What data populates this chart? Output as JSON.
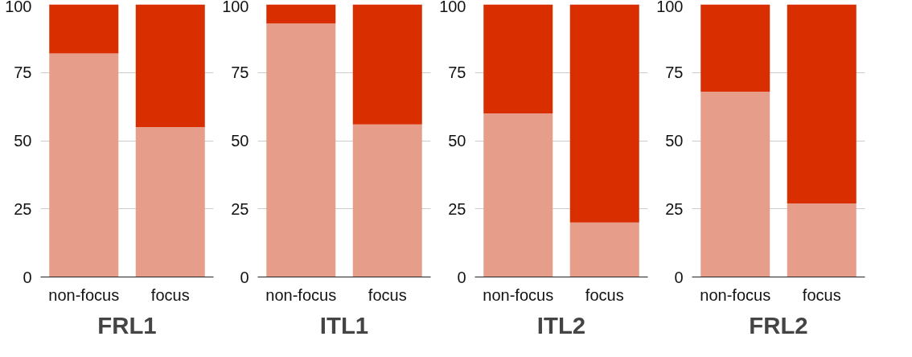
{
  "chart_data": [
    {
      "type": "bar",
      "stacked": true,
      "title": "FRL1",
      "categories": [
        "non-focus",
        "focus"
      ],
      "ylim": [
        0,
        100
      ],
      "yticks": [
        0,
        25,
        50,
        75,
        100
      ],
      "grid": "y",
      "series": [
        {
          "color": "#e69e8a",
          "values": [
            82,
            55
          ]
        },
        {
          "color": "#d92e00",
          "values": [
            18,
            45
          ]
        }
      ]
    },
    {
      "type": "bar",
      "stacked": true,
      "title": "ITL1",
      "categories": [
        "non-focus",
        "focus"
      ],
      "ylim": [
        0,
        100
      ],
      "yticks": [
        0,
        25,
        50,
        75,
        100
      ],
      "grid": "y",
      "series": [
        {
          "color": "#e69e8a",
          "values": [
            93,
            56
          ]
        },
        {
          "color": "#d92e00",
          "values": [
            7,
            44
          ]
        }
      ]
    },
    {
      "type": "bar",
      "stacked": true,
      "title": "ITL2",
      "categories": [
        "non-focus",
        "focus"
      ],
      "ylim": [
        0,
        100
      ],
      "yticks": [
        0,
        25,
        50,
        75,
        100
      ],
      "grid": "y",
      "series": [
        {
          "color": "#e69e8a",
          "values": [
            60,
            20
          ]
        },
        {
          "color": "#d92e00",
          "values": [
            40,
            80
          ]
        }
      ]
    },
    {
      "type": "bar",
      "stacked": true,
      "title": "FRL2",
      "categories": [
        "non-focus",
        "focus"
      ],
      "ylim": [
        0,
        100
      ],
      "yticks": [
        0,
        25,
        50,
        75,
        100
      ],
      "grid": "y",
      "series": [
        {
          "color": "#e69e8a",
          "values": [
            68,
            27
          ]
        },
        {
          "color": "#d92e00",
          "values": [
            32,
            73
          ]
        }
      ]
    }
  ]
}
